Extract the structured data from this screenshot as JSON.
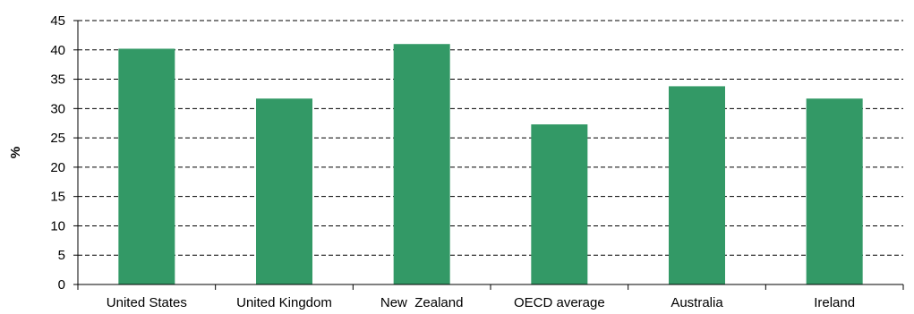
{
  "chart_data": {
    "type": "bar",
    "categories": [
      "United States",
      "United Kingdom",
      "New  Zealand",
      "OECD average",
      "Australia",
      "Ireland"
    ],
    "values": [
      40.2,
      31.7,
      41.0,
      27.3,
      33.8,
      31.7
    ],
    "title": "",
    "xlabel": "",
    "ylabel": "%",
    "ylim": [
      0,
      45
    ],
    "yticks": [
      0,
      5,
      10,
      15,
      20,
      25,
      30,
      35,
      40,
      45
    ],
    "grid": "horizontal dashed",
    "bar_color": "#339966"
  }
}
